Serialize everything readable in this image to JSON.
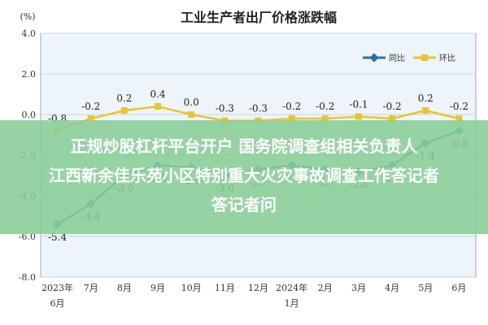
{
  "chart_data": {
    "type": "line",
    "title": "工业生产者出厂价格涨跌幅",
    "ylabel": "(%)",
    "ylim": [
      -8.0,
      4.0
    ],
    "yticks": [
      "4.0",
      "2.0",
      "0.0",
      "-2.0",
      "-4.0",
      "-6.0",
      "-8.0"
    ],
    "categories": [
      "2023年6月",
      "7月",
      "8月",
      "9月",
      "10月",
      "11月",
      "12月",
      "2024年1月",
      "2月",
      "3月",
      "4月",
      "5月",
      "6月"
    ],
    "category_lines": [
      [
        "2023年",
        "6月"
      ],
      [
        "7月"
      ],
      [
        "8月"
      ],
      [
        "9月"
      ],
      [
        "10月"
      ],
      [
        "11月"
      ],
      [
        "12月"
      ],
      [
        "2024年",
        "1月"
      ],
      [
        "2月"
      ],
      [
        "3月"
      ],
      [
        "4月"
      ],
      [
        "5月"
      ],
      [
        "6月"
      ]
    ],
    "series": [
      {
        "name": "同比",
        "color": "#2e6fa7",
        "values": [
          -5.4,
          -4.4,
          -3.0,
          -2.5,
          -2.6,
          -3.0,
          -2.7,
          -2.5,
          -2.7,
          -2.8,
          -2.5,
          -1.4,
          -0.8
        ],
        "labels": [
          "-5.4",
          "-4.4",
          "-3.0",
          "-2.5",
          "-2.6",
          "-3.0",
          "-2.7",
          "-2.5",
          "-2.7",
          "-2.8",
          "-2.5",
          "-1.4",
          "-0.8"
        ]
      },
      {
        "name": "环比",
        "color": "#e8c52d",
        "values": [
          -0.8,
          -0.2,
          0.2,
          0.4,
          0.0,
          -0.3,
          -0.3,
          -0.2,
          -0.2,
          -0.1,
          -0.2,
          0.2,
          -0.2
        ],
        "labels": [
          "-0.8",
          "-0.2",
          "0.2",
          "0.4",
          "0.0",
          "-0.3",
          "-0.3",
          "-0.2",
          "-0.2",
          "-0.1",
          "-0.2",
          "0.2",
          "-0.2"
        ]
      }
    ],
    "legend_position": "top-right",
    "grid": true
  },
  "overlay": {
    "line1": "正规炒股杠杆平台开户 国务院调查组相关负责人",
    "line2": "江西新余佳乐苑小区特别重大火灾事故调查工作答记者",
    "line3": "答记者问"
  },
  "colors": {
    "plot_bg": "#edf4fa",
    "grid": "#c9d6e2",
    "axis_text": "#333333",
    "overlay_bg": "#8ace96"
  }
}
